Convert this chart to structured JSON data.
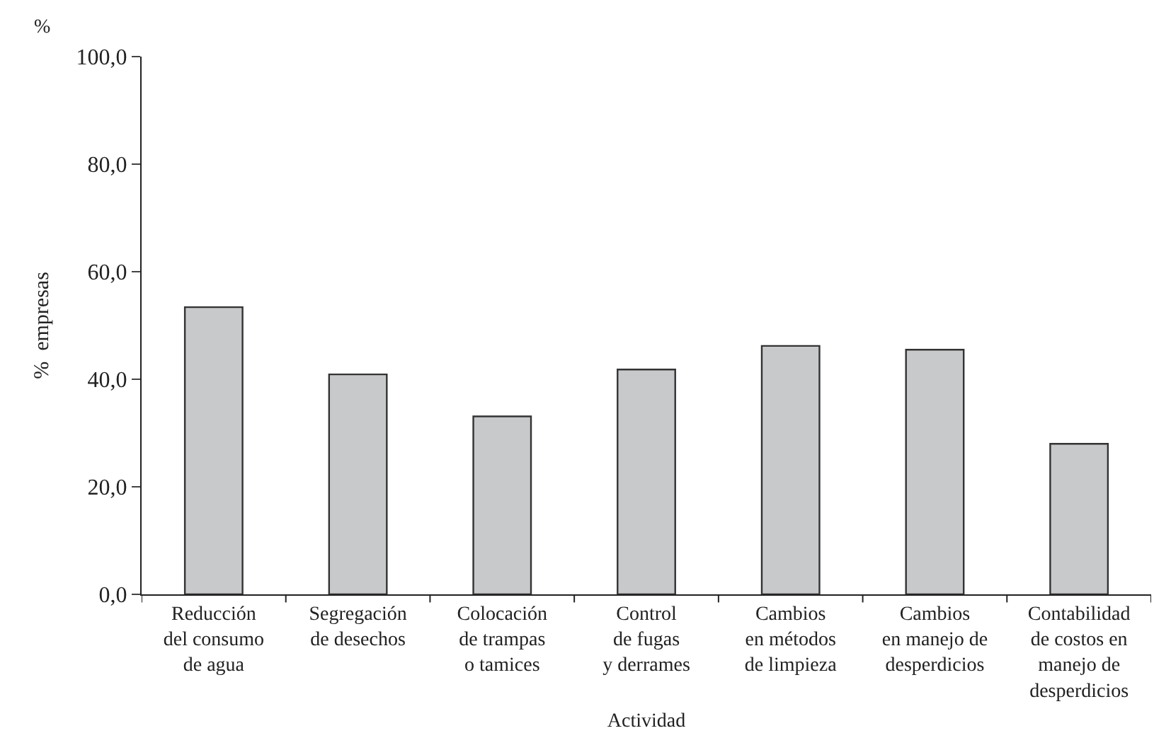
{
  "chart_data": {
    "type": "bar",
    "xlabel": "Actividad",
    "ylabel": "%  empresas",
    "annotations": [
      "%"
    ],
    "categories": [
      "Reducción\ndel consumo\nde agua",
      "Segregación\nde desechos",
      "Colocación\nde trampas\no tamices",
      "Control\nde fugas\ny derrames",
      "Cambios\nen métodos\nde limpieza",
      "Cambios\nen manejo de\ndesperdicios",
      "Contabilidad\nde costos en\nmanejo de\ndesperdicios"
    ],
    "values": [
      53.4,
      40.9,
      33.1,
      41.8,
      46.2,
      45.5,
      28.0
    ],
    "color": "#c8c9cb",
    "ylim": [
      0,
      100
    ],
    "yticks": [
      {
        "value": 0,
        "label": "0,0"
      },
      {
        "value": 20,
        "label": "20,0"
      },
      {
        "value": 40,
        "label": "40,0"
      },
      {
        "value": 60,
        "label": "60,0"
      },
      {
        "value": 80,
        "label": "80,0"
      },
      {
        "value": 100,
        "label": "100,0"
      }
    ]
  }
}
